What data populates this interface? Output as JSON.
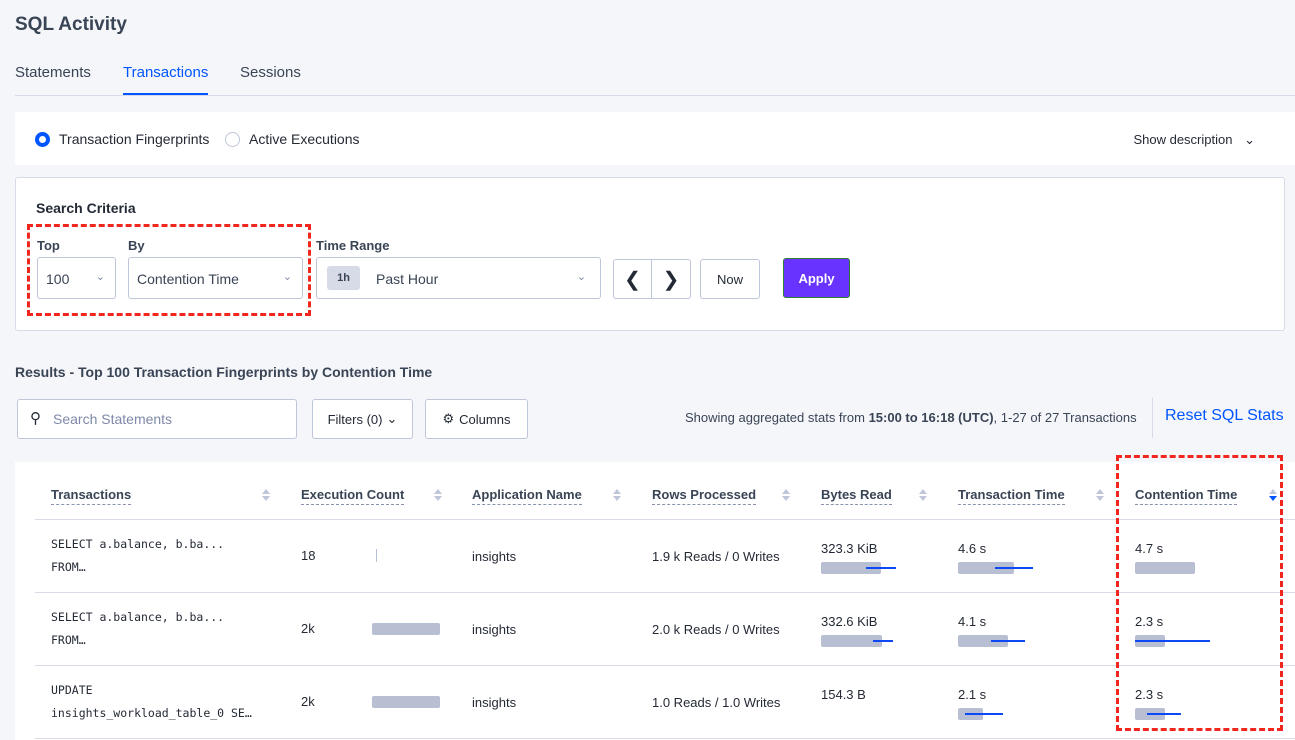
{
  "page_title": "SQL Activity",
  "tabs": [
    {
      "label": "Statements"
    },
    {
      "label": "Transactions",
      "active": true
    },
    {
      "label": "Sessions"
    }
  ],
  "view_options": [
    {
      "label": "Transaction Fingerprints",
      "selected": true
    },
    {
      "label": "Active Executions",
      "selected": false
    }
  ],
  "show_description": "Show description",
  "search_criteria": {
    "heading": "Search Criteria",
    "top_label": "Top",
    "top_value": "100",
    "by_label": "By",
    "by_value": "Contention Time",
    "time_range_label": "Time Range",
    "time_badge": "1h",
    "time_value": "Past Hour",
    "now_label": "Now",
    "apply_label": "Apply"
  },
  "results": {
    "title": "Results - Top 100 Transaction Fingerprints by Contention Time",
    "search_placeholder": "Search Statements",
    "filters_label": "Filters (0)",
    "columns_label": "Columns",
    "agg_prefix": "Showing aggregated stats from ",
    "agg_range": "15:00 to 16:18 (UTC)",
    "agg_suffix": ", 1-27 of 27 Transactions",
    "reset_label": "Reset SQL Stats"
  },
  "colors": {
    "accent": "#0055ff",
    "apply": "#6933ff",
    "highlight": "#f0261f",
    "bar": "#b9bfd2",
    "bar_dev": "#0d48f4"
  },
  "table": {
    "columns": [
      "Transactions",
      "Execution Count",
      "Application Name",
      "Rows Processed",
      "Bytes Read",
      "Transaction Time",
      "Contention Time"
    ],
    "sorted_column": "Contention Time",
    "sort_direction": "descending",
    "rows": [
      {
        "txn_line1": "SELECT a.balance, b.ba...",
        "txn_line2": "FROM…",
        "exec": "18",
        "exec_bar": 0.01,
        "app": "insights",
        "rows": "1.9 k Reads / 0 Writes",
        "bytes": "323.3 KiB",
        "bytes_bar": {
          "mean": 0.8,
          "lo": 0.6,
          "hi": 1.0
        },
        "txn_time": "4.6 s",
        "txn_bar": {
          "mean": 0.75,
          "lo": 0.49,
          "hi": 1.0
        },
        "cont": "4.7 s",
        "cont_bar": {
          "mean": 0.8
        }
      },
      {
        "txn_line1": "SELECT a.balance, b.ba...",
        "txn_line2": "FROM…",
        "exec": "2k",
        "exec_bar": 1.0,
        "app": "insights",
        "rows": "2.0 k Reads / 0 Writes",
        "bytes": "332.6 KiB",
        "bytes_bar": {
          "mean": 0.81,
          "lo": 0.69,
          "hi": 0.95
        },
        "txn_time": "4.1 s",
        "txn_bar": {
          "mean": 0.67,
          "lo": 0.44,
          "hi": 0.89
        },
        "cont": "2.3 s",
        "cont_bar": {
          "mean": 0.4,
          "lo": 0.0,
          "hi": 1.0
        }
      },
      {
        "txn_line1": "UPDATE",
        "txn_line2": "insights_workload_table_0 SE…",
        "exec": "2k",
        "exec_bar": 1.0,
        "app": "insights",
        "rows": "1.0 Reads / 1.0 Writes",
        "bytes": "154.3 B",
        "txn_time": "2.1 s",
        "txn_bar": {
          "mean": 0.33,
          "lo": 0.09,
          "hi": 0.59
        },
        "cont": "2.3 s",
        "cont_bar": {
          "mean": 0.4,
          "lo": 0.16,
          "hi": 0.61
        }
      }
    ]
  }
}
